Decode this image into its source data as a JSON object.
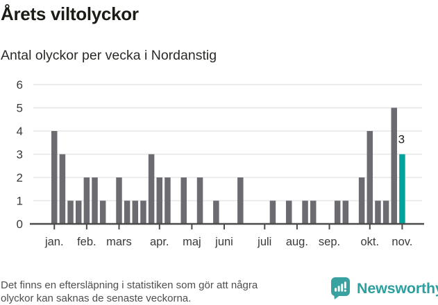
{
  "title": "Årets viltolyckor",
  "subtitle": "Antal olyckor per vecka i Nordanstig",
  "footer": {
    "disclaimer_line1": "Det finns en eftersläpning i statistiken som gör att några",
    "disclaimer_line2": "olyckor kan saknas de senaste veckorna.",
    "brand": "Newsworthy"
  },
  "colors": {
    "bar": "#6b6b71",
    "accent": "#00a39c",
    "grid": "#e6e6e6",
    "axis": "#4b4b4b",
    "tick_text": "#3a3a3a",
    "value_label": "#1e1e1e",
    "brand_teal": "#3aa1a1"
  },
  "chart_data": {
    "type": "bar",
    "title": "Årets viltolyckor",
    "subtitle": "Antal olyckor per vecka i Nordanstig",
    "x_unit": "vecka (week of year)",
    "weeks": 44,
    "values": [
      4,
      3,
      1,
      1,
      2,
      2,
      1,
      0,
      2,
      1,
      1,
      1,
      3,
      2,
      2,
      0,
      2,
      0,
      2,
      0,
      1,
      0,
      0,
      2,
      0,
      0,
      0,
      1,
      0,
      1,
      0,
      1,
      1,
      0,
      0,
      1,
      1,
      0,
      2,
      4,
      1,
      1,
      5,
      3
    ],
    "highlight_index": 43,
    "highlight_label": "3",
    "month_ticks": [
      {
        "label": "jan.",
        "week": 1
      },
      {
        "label": "feb.",
        "week": 5
      },
      {
        "label": "mars",
        "week": 9
      },
      {
        "label": "apr.",
        "week": 14
      },
      {
        "label": "maj",
        "week": 18
      },
      {
        "label": "juni",
        "week": 22
      },
      {
        "label": "juli",
        "week": 27
      },
      {
        "label": "aug.",
        "week": 31
      },
      {
        "label": "sep.",
        "week": 35
      },
      {
        "label": "okt.",
        "week": 40
      },
      {
        "label": "nov.",
        "week": 44
      }
    ],
    "ylabel": "",
    "xlabel": "",
    "ylim": [
      0,
      6
    ],
    "yticks": [
      0,
      1,
      2,
      3,
      4,
      5,
      6
    ],
    "grid": true,
    "legend": false
  }
}
